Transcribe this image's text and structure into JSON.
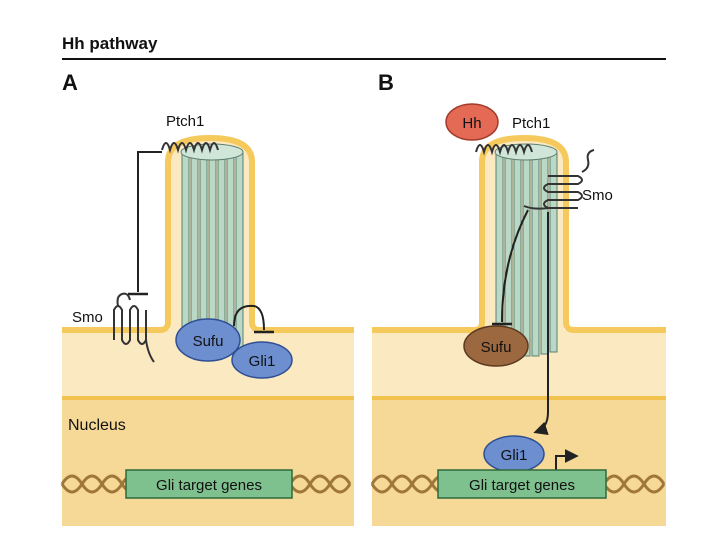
{
  "header": {
    "title": "Hh pathway"
  },
  "panels": [
    {
      "letter": "A",
      "labels": {
        "ptch1": "Ptch1",
        "smo": "Smo",
        "sufu": "Sufu",
        "gli1": "Gli1",
        "nucleus": "Nucleus",
        "genes": "Gli target genes"
      }
    },
    {
      "letter": "B",
      "labels": {
        "hh": "Hh",
        "ptch1": "Ptch1",
        "smo": "Smo",
        "sufu": "Sufu",
        "gli1": "Gli1",
        "genes": "Gli target genes"
      }
    }
  ],
  "colors": {
    "cytoplasm": "#fbe9c2",
    "nucleus": "#f6d997",
    "membrane": "#f5c95c",
    "cilium": "#b9d8c6",
    "sufu_active": "#6d8fd0",
    "sufu_inactive": "#9b6840",
    "gli1": "#6d8fd0",
    "hh": "#e46a55",
    "gene_box": "#7fc08f",
    "dna": "#a0773a"
  }
}
